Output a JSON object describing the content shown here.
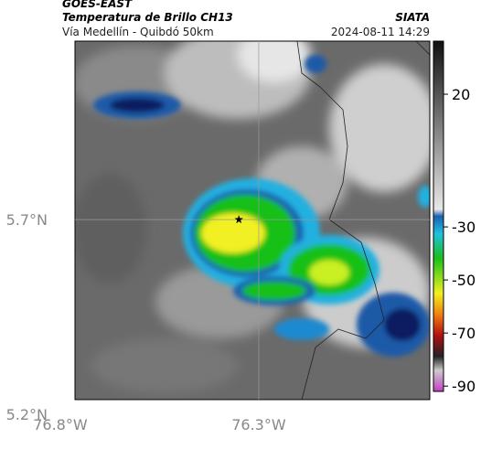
{
  "header": {
    "title": "GOES-EAST",
    "subtitle": "Temperatura de Brillo CH13",
    "location": "Vía Medellín - Quibdó 50km",
    "source": "SIATA",
    "timestamp": "2024-08-11 14:29"
  },
  "map": {
    "xlim": [
      -76.763,
      -75.869
    ],
    "ylim": [
      5.238,
      6.158
    ],
    "xticks": [
      {
        "value": -76.8,
        "label": "76.8°W"
      },
      {
        "value": -76.3,
        "label": "76.3°W"
      }
    ],
    "yticks": [
      {
        "value": 5.7,
        "label": "5.7°N"
      },
      {
        "value": 5.2,
        "label": "5.2°N"
      }
    ],
    "marker": {
      "lon": -76.35,
      "lat": 5.7
    }
  },
  "colorbar": {
    "lim": [
      40,
      -92
    ],
    "ticks": [
      20,
      -30,
      -50,
      -70,
      -90
    ]
  }
}
